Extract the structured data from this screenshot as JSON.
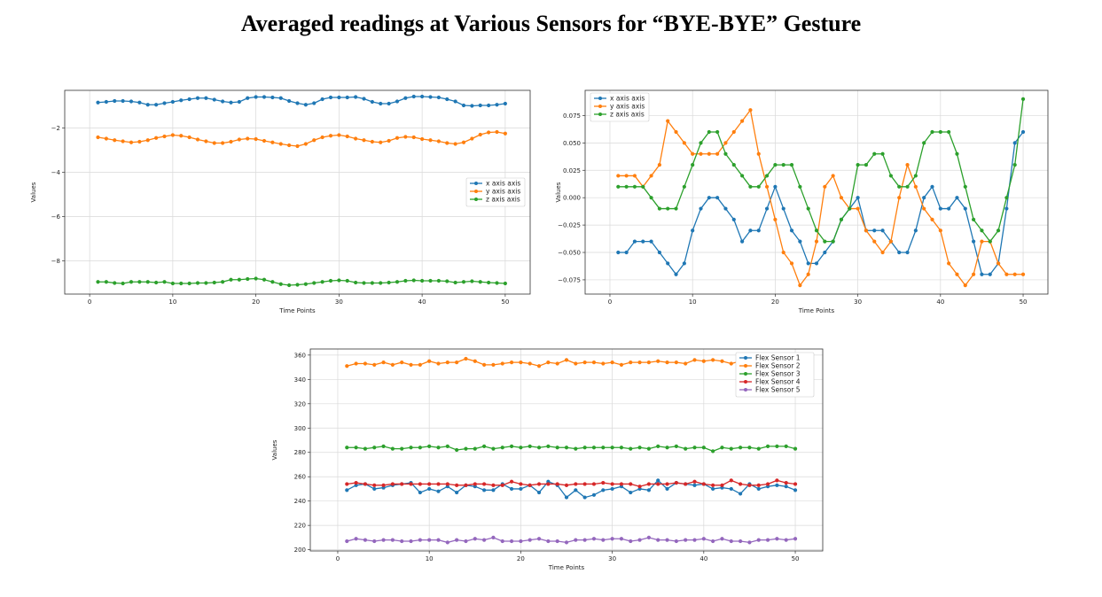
{
  "figure": {
    "title": "Averaged readings at Various Sensors for  “BYE-BYE” Gesture"
  },
  "chart_data": [
    {
      "type": "line",
      "title": "",
      "xlabel": "Time Points",
      "ylabel": "Values",
      "xlim": [
        -3,
        53
      ],
      "ylim": [
        -9.5,
        -0.3
      ],
      "xticks": [
        0,
        10,
        20,
        30,
        40,
        50
      ],
      "yticks": [
        -8,
        -6,
        -4,
        -2
      ],
      "grid": true,
      "legend_position": "center-right",
      "x": [
        1,
        2,
        3,
        4,
        5,
        6,
        7,
        8,
        9,
        10,
        11,
        12,
        13,
        14,
        15,
        16,
        17,
        18,
        19,
        20,
        21,
        22,
        23,
        24,
        25,
        26,
        27,
        28,
        29,
        30,
        31,
        32,
        33,
        34,
        35,
        36,
        37,
        38,
        39,
        40,
        41,
        42,
        43,
        44,
        45,
        46,
        47,
        48,
        49,
        50
      ],
      "series": [
        {
          "name": "x axis axis",
          "color": "#1f77b4",
          "values": [
            -0.85,
            -0.82,
            -0.78,
            -0.78,
            -0.8,
            -0.85,
            -0.95,
            -0.95,
            -0.88,
            -0.82,
            -0.75,
            -0.7,
            -0.65,
            -0.65,
            -0.72,
            -0.8,
            -0.85,
            -0.82,
            -0.65,
            -0.6,
            -0.6,
            -0.62,
            -0.65,
            -0.78,
            -0.88,
            -0.95,
            -0.88,
            -0.7,
            -0.62,
            -0.62,
            -0.62,
            -0.6,
            -0.68,
            -0.82,
            -0.9,
            -0.9,
            -0.8,
            -0.65,
            -0.58,
            -0.58,
            -0.6,
            -0.62,
            -0.7,
            -0.8,
            -0.98,
            -1.0,
            -0.98,
            -0.98,
            -0.95,
            -0.9
          ]
        },
        {
          "name": "y axis axis",
          "color": "#ff7f0e",
          "values": [
            -2.42,
            -2.48,
            -2.55,
            -2.6,
            -2.65,
            -2.62,
            -2.55,
            -2.45,
            -2.38,
            -2.32,
            -2.35,
            -2.42,
            -2.52,
            -2.6,
            -2.68,
            -2.68,
            -2.62,
            -2.52,
            -2.48,
            -2.5,
            -2.58,
            -2.65,
            -2.72,
            -2.78,
            -2.82,
            -2.72,
            -2.55,
            -2.42,
            -2.35,
            -2.32,
            -2.38,
            -2.48,
            -2.55,
            -2.62,
            -2.65,
            -2.58,
            -2.45,
            -2.4,
            -2.42,
            -2.5,
            -2.55,
            -2.6,
            -2.68,
            -2.72,
            -2.65,
            -2.48,
            -2.3,
            -2.2,
            -2.18,
            -2.25
          ]
        },
        {
          "name": "z axis axis",
          "color": "#2ca02c",
          "values": [
            -8.95,
            -8.95,
            -9.0,
            -9.02,
            -8.95,
            -8.95,
            -8.95,
            -8.98,
            -8.95,
            -9.02,
            -9.02,
            -9.02,
            -9.0,
            -9.0,
            -8.98,
            -8.95,
            -8.85,
            -8.85,
            -8.82,
            -8.8,
            -8.85,
            -8.95,
            -9.05,
            -9.1,
            -9.08,
            -9.05,
            -9.0,
            -8.95,
            -8.9,
            -8.88,
            -8.9,
            -8.98,
            -9.0,
            -9.0,
            -9.0,
            -8.98,
            -8.95,
            -8.9,
            -8.88,
            -8.9,
            -8.9,
            -8.9,
            -8.92,
            -8.98,
            -8.95,
            -8.92,
            -8.95,
            -8.98,
            -9.0,
            -9.02
          ]
        }
      ]
    },
    {
      "type": "line",
      "title": "",
      "xlabel": "Time Points",
      "ylabel": "Values",
      "xlim": [
        -3,
        53
      ],
      "ylim": [
        -0.088,
        0.098
      ],
      "xticks": [
        0,
        10,
        20,
        30,
        40,
        50
      ],
      "yticks": [
        -0.075,
        -0.05,
        -0.025,
        0.0,
        0.025,
        0.05,
        0.075
      ],
      "ytick_labels": [
        "−0.075",
        "−0.050",
        "−0.025",
        "0.000",
        "0.025",
        "0.050",
        "0.075"
      ],
      "grid": true,
      "legend_position": "top-left",
      "x": [
        1,
        2,
        3,
        4,
        5,
        6,
        7,
        8,
        9,
        10,
        11,
        12,
        13,
        14,
        15,
        16,
        17,
        18,
        19,
        20,
        21,
        22,
        23,
        24,
        25,
        26,
        27,
        28,
        29,
        30,
        31,
        32,
        33,
        34,
        35,
        36,
        37,
        38,
        39,
        40,
        41,
        42,
        43,
        44,
        45,
        46,
        47,
        48,
        49,
        50
      ],
      "series": [
        {
          "name": "x axis axis",
          "color": "#1f77b4",
          "values": [
            -0.05,
            -0.05,
            -0.04,
            -0.04,
            -0.04,
            -0.05,
            -0.06,
            -0.07,
            -0.06,
            -0.03,
            -0.01,
            0.0,
            0.0,
            -0.01,
            -0.02,
            -0.04,
            -0.03,
            -0.03,
            -0.01,
            0.01,
            -0.01,
            -0.03,
            -0.04,
            -0.06,
            -0.06,
            -0.05,
            -0.04,
            -0.02,
            -0.01,
            0.0,
            -0.03,
            -0.03,
            -0.03,
            -0.04,
            -0.05,
            -0.05,
            -0.03,
            0.0,
            0.01,
            -0.01,
            -0.01,
            0.0,
            -0.01,
            -0.04,
            -0.07,
            -0.07,
            -0.06,
            -0.01,
            0.05,
            0.06
          ]
        },
        {
          "name": "y axis axis",
          "color": "#ff7f0e",
          "values": [
            0.02,
            0.02,
            0.02,
            0.01,
            0.02,
            0.03,
            0.07,
            0.06,
            0.05,
            0.04,
            0.04,
            0.04,
            0.04,
            0.05,
            0.06,
            0.07,
            0.08,
            0.04,
            0.01,
            -0.02,
            -0.05,
            -0.06,
            -0.08,
            -0.07,
            -0.04,
            0.01,
            0.02,
            0.0,
            -0.01,
            -0.01,
            -0.03,
            -0.04,
            -0.05,
            -0.04,
            0.0,
            0.03,
            0.01,
            -0.01,
            -0.02,
            -0.03,
            -0.06,
            -0.07,
            -0.08,
            -0.07,
            -0.04,
            -0.04,
            -0.06,
            -0.07,
            -0.07,
            -0.07
          ]
        },
        {
          "name": "z axis axis",
          "color": "#2ca02c",
          "values": [
            0.01,
            0.01,
            0.01,
            0.01,
            0.0,
            -0.01,
            -0.01,
            -0.01,
            0.01,
            0.03,
            0.05,
            0.06,
            0.06,
            0.04,
            0.03,
            0.02,
            0.01,
            0.01,
            0.02,
            0.03,
            0.03,
            0.03,
            0.01,
            -0.01,
            -0.03,
            -0.04,
            -0.04,
            -0.02,
            -0.01,
            0.03,
            0.03,
            0.04,
            0.04,
            0.02,
            0.01,
            0.01,
            0.02,
            0.05,
            0.06,
            0.06,
            0.06,
            0.04,
            0.01,
            -0.02,
            -0.03,
            -0.04,
            -0.03,
            0.0,
            0.03,
            0.09
          ]
        }
      ]
    },
    {
      "type": "line",
      "title": "",
      "xlabel": "Time Points",
      "ylabel": "Values",
      "xlim": [
        -3,
        53
      ],
      "ylim": [
        199,
        365
      ],
      "xticks": [
        0,
        10,
        20,
        30,
        40,
        50
      ],
      "yticks": [
        200,
        220,
        240,
        260,
        280,
        300,
        320,
        340,
        360
      ],
      "grid": true,
      "legend_position": "top-right",
      "x": [
        1,
        2,
        3,
        4,
        5,
        6,
        7,
        8,
        9,
        10,
        11,
        12,
        13,
        14,
        15,
        16,
        17,
        18,
        19,
        20,
        21,
        22,
        23,
        24,
        25,
        26,
        27,
        28,
        29,
        30,
        31,
        32,
        33,
        34,
        35,
        36,
        37,
        38,
        39,
        40,
        41,
        42,
        43,
        44,
        45,
        46,
        47,
        48,
        49,
        50
      ],
      "series": [
        {
          "name": "Flex Sensor 1",
          "color": "#1f77b4",
          "values": [
            249,
            253,
            254,
            250,
            251,
            253,
            254,
            255,
            247,
            250,
            248,
            252,
            247,
            253,
            252,
            249,
            249,
            254,
            250,
            250,
            253,
            247,
            256,
            253,
            243,
            249,
            243,
            245,
            249,
            250,
            252,
            247,
            250,
            249,
            257,
            250,
            255,
            254,
            253,
            254,
            250,
            251,
            250,
            246,
            254,
            250,
            252,
            253,
            252,
            249
          ]
        },
        {
          "name": "Flex Sensor 2",
          "color": "#ff7f0e",
          "values": [
            351,
            353,
            353,
            352,
            354,
            352,
            354,
            352,
            352,
            355,
            353,
            354,
            354,
            357,
            355,
            352,
            352,
            353,
            354,
            354,
            353,
            351,
            354,
            353,
            356,
            353,
            354,
            354,
            353,
            354,
            352,
            354,
            354,
            354,
            355,
            354,
            354,
            353,
            356,
            355,
            356,
            355,
            353,
            355,
            355,
            356,
            354,
            355,
            354,
            355
          ]
        },
        {
          "name": "Flex Sensor 3",
          "color": "#2ca02c",
          "values": [
            284,
            284,
            283,
            284,
            285,
            283,
            283,
            284,
            284,
            285,
            284,
            285,
            282,
            283,
            283,
            285,
            283,
            284,
            285,
            284,
            285,
            284,
            285,
            284,
            284,
            283,
            284,
            284,
            284,
            284,
            284,
            283,
            284,
            283,
            285,
            284,
            285,
            283,
            284,
            284,
            281,
            284,
            283,
            284,
            284,
            283,
            285,
            285,
            285,
            283
          ]
        },
        {
          "name": "Flex Sensor 4",
          "color": "#d62728",
          "values": [
            254,
            255,
            254,
            253,
            253,
            254,
            254,
            254,
            254,
            254,
            254,
            254,
            253,
            253,
            254,
            254,
            253,
            253,
            256,
            254,
            253,
            254,
            254,
            254,
            253,
            254,
            254,
            254,
            255,
            254,
            254,
            254,
            252,
            254,
            254,
            254,
            255,
            254,
            256,
            254,
            253,
            253,
            257,
            254,
            253,
            253,
            254,
            257,
            255,
            254
          ]
        },
        {
          "name": "Flex Sensor 5",
          "color": "#9467bd",
          "values": [
            207,
            209,
            208,
            207,
            208,
            208,
            207,
            207,
            208,
            208,
            208,
            206,
            208,
            207,
            209,
            208,
            210,
            207,
            207,
            207,
            208,
            209,
            207,
            207,
            206,
            208,
            208,
            209,
            208,
            209,
            209,
            207,
            208,
            210,
            208,
            208,
            207,
            208,
            208,
            209,
            207,
            209,
            207,
            207,
            206,
            208,
            208,
            209,
            208,
            209
          ]
        }
      ]
    }
  ]
}
